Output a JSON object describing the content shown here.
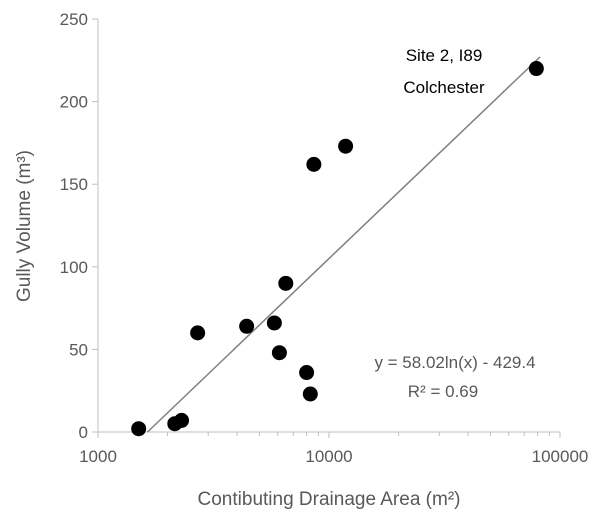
{
  "chart_data": {
    "type": "scatter",
    "title": "",
    "xlabel": "Contibuting Drainage Area (m²)",
    "ylabel": "Gully Volume (m³)",
    "xscale": "log",
    "xlim": [
      1000,
      100000
    ],
    "ylim": [
      0,
      250
    ],
    "x_ticks": [
      "1000",
      "10000",
      "100000"
    ],
    "y_ticks": [
      "0",
      "50",
      "100",
      "150",
      "200",
      "250"
    ],
    "grid": false,
    "legend": "none",
    "colors": {
      "points": "#000000",
      "trendline": "#808080",
      "axis": "#bfbfbf",
      "text": "#595959"
    },
    "points": [
      {
        "x": 1500,
        "y": 2
      },
      {
        "x": 2150,
        "y": 5
      },
      {
        "x": 2300,
        "y": 7
      },
      {
        "x": 2700,
        "y": 60
      },
      {
        "x": 4400,
        "y": 64
      },
      {
        "x": 5800,
        "y": 66
      },
      {
        "x": 6100,
        "y": 48
      },
      {
        "x": 6500,
        "y": 90
      },
      {
        "x": 8000,
        "y": 36
      },
      {
        "x": 8300,
        "y": 23
      },
      {
        "x": 8600,
        "y": 162
      },
      {
        "x": 11800,
        "y": 173
      },
      {
        "x": 79000,
        "y": 220
      }
    ],
    "trendline": {
      "type": "logarithmic",
      "a": 58.02,
      "b": -429.4,
      "equation": "y = 58.02ln(x) - 429.4",
      "r_squared": "R² = 0.69"
    },
    "annotations": [
      {
        "text_lines": [
          "Site 2, I89",
          "Colchester"
        ],
        "point_index": 12
      }
    ]
  }
}
